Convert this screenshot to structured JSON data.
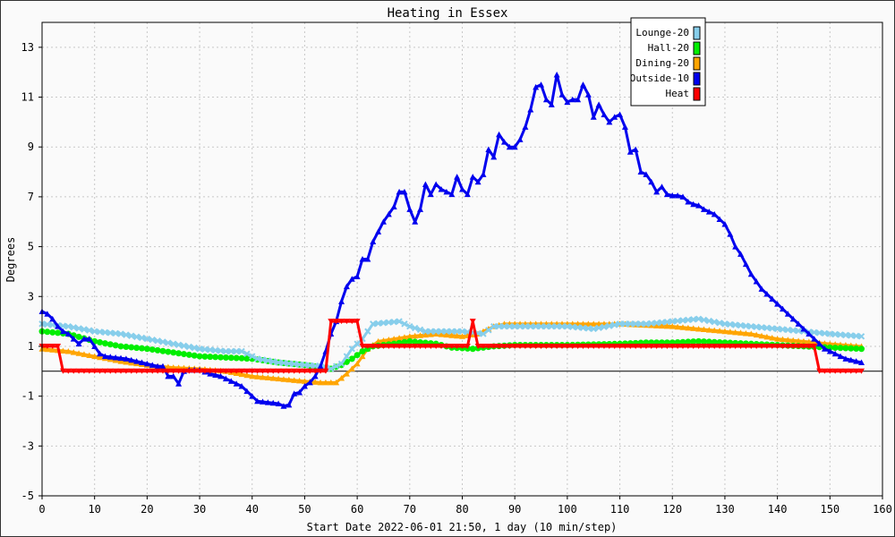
{
  "chart_data": {
    "type": "line",
    "title": "Heating in Essex",
    "xlabel": "Start Date 2022-06-01 21:50, 1 day (10 min/step)",
    "ylabel": "Degrees",
    "xlim": [
      0,
      160
    ],
    "ylim": [
      -5,
      14
    ],
    "xticks": [
      0,
      10,
      20,
      30,
      40,
      50,
      60,
      70,
      80,
      90,
      100,
      110,
      120,
      130,
      140,
      150,
      160
    ],
    "yticks": [
      -5,
      -3,
      -1,
      1,
      3,
      5,
      7,
      9,
      11,
      13
    ],
    "grid": true,
    "legend_position": "top-right",
    "series": [
      {
        "name": "Lounge-20",
        "color": "#87ceeb",
        "marker": "cross",
        "points": [
          [
            0,
            1.9
          ],
          [
            5,
            1.8
          ],
          [
            10,
            1.6
          ],
          [
            15,
            1.5
          ],
          [
            20,
            1.3
          ],
          [
            25,
            1.1
          ],
          [
            30,
            0.9
          ],
          [
            35,
            0.8
          ],
          [
            38,
            0.8
          ],
          [
            41,
            0.5
          ],
          [
            45,
            0.35
          ],
          [
            50,
            0.25
          ],
          [
            53,
            0.2
          ],
          [
            55,
            0.1
          ],
          [
            57,
            0.3
          ],
          [
            59,
            0.9
          ],
          [
            61,
            1.3
          ],
          [
            63,
            1.9
          ],
          [
            68,
            2.0
          ],
          [
            70,
            1.8
          ],
          [
            73,
            1.6
          ],
          [
            80,
            1.6
          ],
          [
            84,
            1.5
          ],
          [
            86,
            1.8
          ],
          [
            90,
            1.8
          ],
          [
            100,
            1.8
          ],
          [
            105,
            1.7
          ],
          [
            110,
            1.9
          ],
          [
            115,
            1.9
          ],
          [
            120,
            2.0
          ],
          [
            125,
            2.1
          ],
          [
            130,
            1.9
          ],
          [
            135,
            1.8
          ],
          [
            140,
            1.7
          ],
          [
            145,
            1.6
          ],
          [
            150,
            1.5
          ],
          [
            156,
            1.4
          ]
        ]
      },
      {
        "name": "Hall-20",
        "color": "#00ee00",
        "marker": "dot",
        "points": [
          [
            0,
            1.6
          ],
          [
            5,
            1.5
          ],
          [
            10,
            1.2
          ],
          [
            15,
            1.0
          ],
          [
            20,
            0.9
          ],
          [
            25,
            0.75
          ],
          [
            30,
            0.6
          ],
          [
            35,
            0.55
          ],
          [
            40,
            0.5
          ],
          [
            45,
            0.35
          ],
          [
            50,
            0.25
          ],
          [
            55,
            0.1
          ],
          [
            57,
            0.25
          ],
          [
            59,
            0.5
          ],
          [
            61,
            0.8
          ],
          [
            63,
            1.0
          ],
          [
            67,
            1.1
          ],
          [
            70,
            1.2
          ],
          [
            75,
            1.1
          ],
          [
            78,
            0.95
          ],
          [
            82,
            0.9
          ],
          [
            86,
            1.0
          ],
          [
            90,
            1.05
          ],
          [
            100,
            1.05
          ],
          [
            110,
            1.1
          ],
          [
            115,
            1.15
          ],
          [
            120,
            1.15
          ],
          [
            125,
            1.2
          ],
          [
            130,
            1.15
          ],
          [
            135,
            1.1
          ],
          [
            140,
            1.05
          ],
          [
            145,
            1.0
          ],
          [
            150,
            0.95
          ],
          [
            156,
            0.9
          ]
        ]
      },
      {
        "name": "Dining-20",
        "color": "#ffa500",
        "marker": "triangle",
        "points": [
          [
            0,
            0.9
          ],
          [
            5,
            0.8
          ],
          [
            10,
            0.6
          ],
          [
            15,
            0.4
          ],
          [
            20,
            0.25
          ],
          [
            25,
            0.15
          ],
          [
            30,
            0.1
          ],
          [
            35,
            0.0
          ],
          [
            40,
            -0.2
          ],
          [
            45,
            -0.3
          ],
          [
            50,
            -0.4
          ],
          [
            53,
            -0.45
          ],
          [
            56,
            -0.45
          ],
          [
            58,
            -0.1
          ],
          [
            60,
            0.3
          ],
          [
            62,
            0.9
          ],
          [
            64,
            1.2
          ],
          [
            70,
            1.4
          ],
          [
            75,
            1.5
          ],
          [
            80,
            1.4
          ],
          [
            83,
            1.5
          ],
          [
            86,
            1.8
          ],
          [
            88,
            1.9
          ],
          [
            92,
            1.9
          ],
          [
            100,
            1.9
          ],
          [
            110,
            1.9
          ],
          [
            115,
            1.85
          ],
          [
            120,
            1.8
          ],
          [
            125,
            1.7
          ],
          [
            130,
            1.6
          ],
          [
            135,
            1.5
          ],
          [
            140,
            1.3
          ],
          [
            145,
            1.2
          ],
          [
            150,
            1.1
          ],
          [
            156,
            1.0
          ]
        ]
      },
      {
        "name": "Outside-10",
        "color": "#0000ee",
        "marker": "triangle",
        "points": [
          [
            0,
            2.4
          ],
          [
            1,
            2.3
          ],
          [
            2,
            2.1
          ],
          [
            3,
            1.8
          ],
          [
            4,
            1.6
          ],
          [
            5,
            1.5
          ],
          [
            6,
            1.3
          ],
          [
            7,
            1.1
          ],
          [
            8,
            1.3
          ],
          [
            9,
            1.3
          ],
          [
            10,
            1.0
          ],
          [
            11,
            0.7
          ],
          [
            12,
            0.6
          ],
          [
            14,
            0.55
          ],
          [
            16,
            0.5
          ],
          [
            18,
            0.4
          ],
          [
            20,
            0.3
          ],
          [
            22,
            0.2
          ],
          [
            23,
            0.2
          ],
          [
            24,
            -0.2
          ],
          [
            25,
            -0.2
          ],
          [
            26,
            -0.5
          ],
          [
            27,
            0.0
          ],
          [
            28,
            0.05
          ],
          [
            30,
            0.05
          ],
          [
            32,
            -0.1
          ],
          [
            34,
            -0.2
          ],
          [
            36,
            -0.4
          ],
          [
            38,
            -0.6
          ],
          [
            40,
            -1.0
          ],
          [
            41,
            -1.2
          ],
          [
            43,
            -1.25
          ],
          [
            45,
            -1.3
          ],
          [
            46,
            -1.4
          ],
          [
            47,
            -1.35
          ],
          [
            48,
            -0.9
          ],
          [
            49,
            -0.85
          ],
          [
            50,
            -0.6
          ],
          [
            51,
            -0.45
          ],
          [
            52,
            -0.2
          ],
          [
            53,
            0.2
          ],
          [
            54,
            0.8
          ],
          [
            55,
            1.5
          ],
          [
            56,
            2.0
          ],
          [
            57,
            2.8
          ],
          [
            58,
            3.4
          ],
          [
            59,
            3.7
          ],
          [
            60,
            3.8
          ],
          [
            61,
            4.5
          ],
          [
            62,
            4.5
          ],
          [
            63,
            5.2
          ],
          [
            64,
            5.6
          ],
          [
            65,
            6.0
          ],
          [
            66,
            6.3
          ],
          [
            67,
            6.6
          ],
          [
            68,
            7.2
          ],
          [
            69,
            7.2
          ],
          [
            70,
            6.5
          ],
          [
            71,
            6.0
          ],
          [
            72,
            6.5
          ],
          [
            73,
            7.5
          ],
          [
            74,
            7.1
          ],
          [
            75,
            7.5
          ],
          [
            76,
            7.3
          ],
          [
            77,
            7.2
          ],
          [
            78,
            7.1
          ],
          [
            79,
            7.8
          ],
          [
            80,
            7.3
          ],
          [
            81,
            7.1
          ],
          [
            82,
            7.8
          ],
          [
            83,
            7.6
          ],
          [
            84,
            7.9
          ],
          [
            85,
            8.9
          ],
          [
            86,
            8.6
          ],
          [
            87,
            9.5
          ],
          [
            88,
            9.2
          ],
          [
            89,
            9.0
          ],
          [
            90,
            9.0
          ],
          [
            91,
            9.3
          ],
          [
            92,
            9.8
          ],
          [
            93,
            10.5
          ],
          [
            94,
            11.4
          ],
          [
            95,
            11.5
          ],
          [
            96,
            10.9
          ],
          [
            97,
            10.7
          ],
          [
            98,
            11.9
          ],
          [
            99,
            11.1
          ],
          [
            100,
            10.8
          ],
          [
            101,
            10.9
          ],
          [
            102,
            10.9
          ],
          [
            103,
            11.5
          ],
          [
            104,
            11.1
          ],
          [
            105,
            10.2
          ],
          [
            106,
            10.7
          ],
          [
            107,
            10.3
          ],
          [
            108,
            10.0
          ],
          [
            109,
            10.2
          ],
          [
            110,
            10.3
          ],
          [
            111,
            9.8
          ],
          [
            112,
            8.8
          ],
          [
            113,
            8.9
          ],
          [
            114,
            8.0
          ],
          [
            115,
            7.9
          ],
          [
            116,
            7.6
          ],
          [
            117,
            7.2
          ],
          [
            118,
            7.4
          ],
          [
            119,
            7.1
          ],
          [
            120,
            7.05
          ],
          [
            121,
            7.05
          ],
          [
            122,
            7.0
          ],
          [
            123,
            6.8
          ],
          [
            124,
            6.7
          ],
          [
            125,
            6.65
          ],
          [
            126,
            6.5
          ],
          [
            127,
            6.4
          ],
          [
            128,
            6.3
          ],
          [
            129,
            6.1
          ],
          [
            130,
            5.9
          ],
          [
            131,
            5.5
          ],
          [
            132,
            5.0
          ],
          [
            133,
            4.7
          ],
          [
            134,
            4.3
          ],
          [
            135,
            3.9
          ],
          [
            136,
            3.6
          ],
          [
            137,
            3.3
          ],
          [
            138,
            3.1
          ],
          [
            139,
            2.9
          ],
          [
            140,
            2.7
          ],
          [
            141,
            2.5
          ],
          [
            142,
            2.3
          ],
          [
            143,
            2.1
          ],
          [
            144,
            1.9
          ],
          [
            145,
            1.7
          ],
          [
            146,
            1.5
          ],
          [
            147,
            1.3
          ],
          [
            148,
            1.1
          ],
          [
            149,
            0.9
          ],
          [
            150,
            0.8
          ],
          [
            151,
            0.7
          ],
          [
            152,
            0.6
          ],
          [
            153,
            0.5
          ],
          [
            154,
            0.45
          ],
          [
            155,
            0.4
          ],
          [
            156,
            0.35
          ]
        ]
      },
      {
        "name": "Heat",
        "color": "#ff0000",
        "marker": "triangle-down",
        "points": [
          [
            0,
            1
          ],
          [
            3,
            1
          ],
          [
            4,
            0
          ],
          [
            54,
            0
          ],
          [
            55,
            2
          ],
          [
            60,
            2
          ],
          [
            61,
            1
          ],
          [
            81,
            1
          ],
          [
            82,
            2
          ],
          [
            83,
            1
          ],
          [
            147,
            1
          ],
          [
            148,
            0
          ],
          [
            156,
            0
          ]
        ]
      }
    ]
  }
}
